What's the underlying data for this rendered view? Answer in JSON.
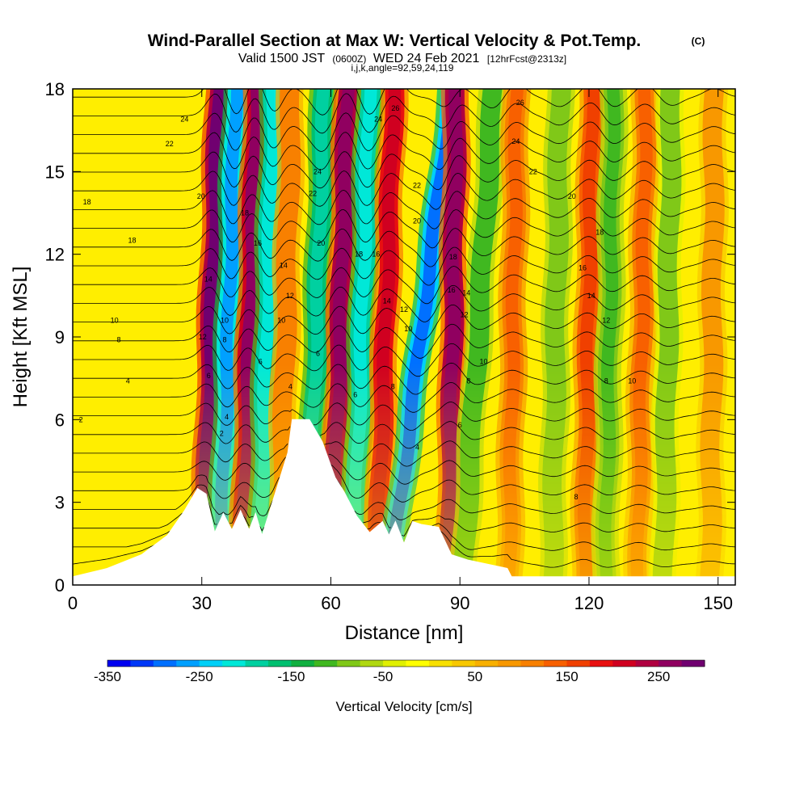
{
  "chart_data": {
    "type": "heatmap",
    "title": {
      "main": "Wind-Parallel Section at Max W: Vertical Velocity & Pot.Temp.",
      "copyright": "(C)",
      "valid_prefix": "Valid 1500 JST",
      "valid_utc": "(0600Z)",
      "valid_date": "WED 24 Feb 2021",
      "forecast": "[12hrFcst@2313z]",
      "indices": "i,j,k,angle=92,59,24,119"
    },
    "xlabel": "Distance [nm]",
    "ylabel": "Height [Kft MSL]",
    "xlim": [
      0,
      154
    ],
    "ylim": [
      0,
      18
    ],
    "x_ticks": [
      "0",
      "30",
      "60",
      "90",
      "120",
      "150"
    ],
    "y_ticks": [
      "0",
      "3",
      "6",
      "9",
      "12",
      "15",
      "18"
    ],
    "colorbar": {
      "label": "Vertical Velocity [cm/s]",
      "tick_labels": [
        "-350",
        "-250",
        "-150",
        "-50",
        "50",
        "150",
        "250"
      ],
      "range": [
        -350,
        300
      ],
      "colors": [
        "#0000f0",
        "#0038f8",
        "#0070ff",
        "#00a0ff",
        "#00d0f8",
        "#00e8d8",
        "#00d0a0",
        "#00c070",
        "#10b040",
        "#40b820",
        "#80c818",
        "#b0d810",
        "#e0f000",
        "#ffff00",
        "#f8e000",
        "#f8c800",
        "#f8b000",
        "#f89800",
        "#f88000",
        "#f86000",
        "#f04000",
        "#e81010",
        "#d00020",
        "#b00040",
        "#900060",
        "#700070"
      ]
    },
    "terrain_profile": {
      "x": [
        0,
        8,
        16,
        22,
        26,
        29,
        31,
        33,
        35,
        37,
        39,
        41,
        42.5,
        44,
        47,
        50,
        51,
        55,
        58,
        61,
        63,
        66,
        69,
        72,
        73.5,
        75,
        77,
        79,
        81,
        85,
        88,
        92,
        101,
        102,
        154
      ],
      "y": [
        0.3,
        0.6,
        1.1,
        1.8,
        2.7,
        3.5,
        3.3,
        1.9,
        2.6,
        2.0,
        2.7,
        2.0,
        2.6,
        1.8,
        3.3,
        4.8,
        6.0,
        6.0,
        5.2,
        3.9,
        3.4,
        2.5,
        1.9,
        2.3,
        1.8,
        2.3,
        1.5,
        2.3,
        2.2,
        2.1,
        1.1,
        0.9,
        0.6,
        0.3,
        0.3
      ]
    },
    "w_columns": [
      {
        "x": 31.5,
        "w": 280,
        "x_drift_per_kft": 0.2
      },
      {
        "x": 35.5,
        "w": -260,
        "x_drift_per_kft": 0.2
      },
      {
        "x": 40.5,
        "w": 260,
        "x_drift_per_kft": 0.18
      },
      {
        "x": 44.5,
        "w": -220,
        "x_drift_per_kft": 0.18
      },
      {
        "x": 49.0,
        "w": 120,
        "x_drift_per_kft": 0.15
      },
      {
        "x": 56.0,
        "w": -200,
        "x_drift_per_kft": 0.2
      },
      {
        "x": 61.5,
        "w": 270,
        "x_drift_per_kft": 0.2
      },
      {
        "x": 66.5,
        "w": -210,
        "x_drift_per_kft": 0.2
      },
      {
        "x": 72.0,
        "w": 220,
        "x_drift_per_kft": 0.22
      },
      {
        "x": 78.5,
        "w": -280,
        "x_drift_per_kft": 0.8
      },
      {
        "x": 88.0,
        "w": 270,
        "x_drift_per_kft": 0.1
      },
      {
        "x": 93.0,
        "w": -120,
        "x_drift_per_kft": 0.4
      },
      {
        "x": 102.0,
        "w": 140,
        "x_drift_per_kft": 0.1
      },
      {
        "x": 112.0,
        "w": -100,
        "x_drift_per_kft": 0.1
      },
      {
        "x": 119.5,
        "w": 150,
        "x_drift_per_kft": 0.1
      },
      {
        "x": 124.5,
        "w": -110,
        "x_drift_per_kft": 0.1
      },
      {
        "x": 132.0,
        "w": 130,
        "x_drift_per_kft": 0.1
      },
      {
        "x": 138.0,
        "w": -90,
        "x_drift_per_kft": 0.1
      },
      {
        "x": 148.5,
        "w": 90,
        "x_drift_per_kft": 0.05
      }
    ],
    "theta_contour_labels": [
      {
        "text": "24",
        "x": 26.0,
        "y": 16.9
      },
      {
        "text": "22",
        "x": 22.5,
        "y": 16.0
      },
      {
        "text": "18",
        "x": 3.3,
        "y": 13.9
      },
      {
        "text": "20",
        "x": 29.8,
        "y": 14.1
      },
      {
        "text": "18",
        "x": 13.8,
        "y": 12.5
      },
      {
        "text": "18",
        "x": 40.0,
        "y": 13.5
      },
      {
        "text": "16",
        "x": 43.0,
        "y": 12.4
      },
      {
        "text": "14",
        "x": 31.5,
        "y": 11.1
      },
      {
        "text": "14",
        "x": 49.0,
        "y": 11.6
      },
      {
        "text": "12",
        "x": 50.5,
        "y": 10.5
      },
      {
        "text": "10",
        "x": 9.7,
        "y": 9.6
      },
      {
        "text": "8",
        "x": 10.7,
        "y": 8.9
      },
      {
        "text": "12",
        "x": 30.2,
        "y": 9.0
      },
      {
        "text": "10",
        "x": 35.3,
        "y": 9.6
      },
      {
        "text": "8",
        "x": 35.3,
        "y": 8.9
      },
      {
        "text": "10",
        "x": 48.5,
        "y": 9.6
      },
      {
        "text": "6",
        "x": 31.6,
        "y": 7.6
      },
      {
        "text": "6",
        "x": 43.6,
        "y": 8.1
      },
      {
        "text": "6",
        "x": 57.0,
        "y": 8.4
      },
      {
        "text": "4",
        "x": 12.8,
        "y": 7.4
      },
      {
        "text": "4",
        "x": 50.6,
        "y": 7.2
      },
      {
        "text": "4",
        "x": 35.8,
        "y": 6.1
      },
      {
        "text": "2",
        "x": 1.9,
        "y": 6.0
      },
      {
        "text": "2",
        "x": 34.6,
        "y": 5.5
      },
      {
        "text": "24",
        "x": 56.9,
        "y": 15.0
      },
      {
        "text": "22",
        "x": 55.8,
        "y": 14.2
      },
      {
        "text": "20",
        "x": 57.7,
        "y": 12.4
      },
      {
        "text": "18",
        "x": 66.5,
        "y": 12.0
      },
      {
        "text": "16",
        "x": 70.5,
        "y": 12.0
      },
      {
        "text": "24",
        "x": 71.0,
        "y": 16.9
      },
      {
        "text": "26",
        "x": 75.0,
        "y": 17.3
      },
      {
        "text": "22",
        "x": 80.0,
        "y": 14.5
      },
      {
        "text": "20",
        "x": 80.0,
        "y": 13.2
      },
      {
        "text": "18",
        "x": 88.4,
        "y": 11.9
      },
      {
        "text": "14",
        "x": 73.0,
        "y": 10.3
      },
      {
        "text": "12",
        "x": 77.0,
        "y": 10.0
      },
      {
        "text": "10",
        "x": 78.0,
        "y": 9.3
      },
      {
        "text": "16",
        "x": 88.0,
        "y": 10.7
      },
      {
        "text": "14",
        "x": 91.5,
        "y": 10.6
      },
      {
        "text": "12",
        "x": 91.0,
        "y": 9.8
      },
      {
        "text": "6",
        "x": 65.7,
        "y": 6.9
      },
      {
        "text": "8",
        "x": 74.4,
        "y": 7.2
      },
      {
        "text": "10",
        "x": 95.5,
        "y": 8.1
      },
      {
        "text": "8",
        "x": 92.0,
        "y": 7.4
      },
      {
        "text": "6",
        "x": 90.0,
        "y": 5.8
      },
      {
        "text": "4",
        "x": 80.1,
        "y": 5.0
      },
      {
        "text": "26",
        "x": 104.0,
        "y": 17.5
      },
      {
        "text": "24",
        "x": 103.0,
        "y": 16.1
      },
      {
        "text": "22",
        "x": 107.0,
        "y": 15.0
      },
      {
        "text": "20",
        "x": 116.0,
        "y": 14.1
      },
      {
        "text": "18",
        "x": 122.5,
        "y": 12.8
      },
      {
        "text": "16",
        "x": 118.5,
        "y": 11.5
      },
      {
        "text": "14",
        "x": 120.5,
        "y": 10.5
      },
      {
        "text": "12",
        "x": 124.0,
        "y": 9.6
      },
      {
        "text": "10",
        "x": 130.0,
        "y": 7.4
      },
      {
        "text": "8",
        "x": 124.0,
        "y": 7.4
      },
      {
        "text": "8",
        "x": 117.0,
        "y": 3.2
      }
    ]
  }
}
